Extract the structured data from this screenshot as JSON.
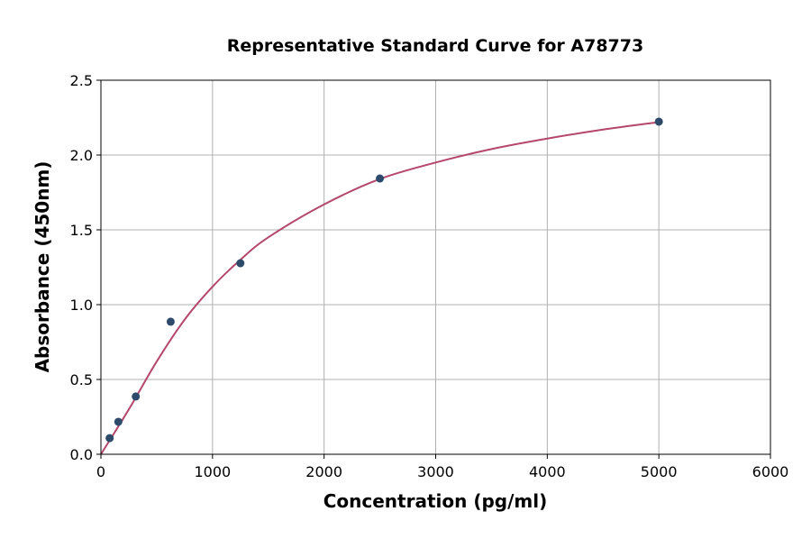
{
  "chart_data": {
    "type": "scatter",
    "title": "Representative Standard Curve for A78773",
    "xlabel": "Concentration (pg/ml)",
    "ylabel": "Absorbance (450nm)",
    "xlim": [
      0,
      6000
    ],
    "ylim": [
      0,
      2.5
    ],
    "xticks": [
      0,
      1000,
      2000,
      3000,
      4000,
      5000,
      6000
    ],
    "yticks": [
      0.0,
      0.5,
      1.0,
      1.5,
      2.0,
      2.5
    ],
    "xtick_labels": [
      "0",
      "1000",
      "2000",
      "3000",
      "4000",
      "5000",
      "6000"
    ],
    "ytick_labels": [
      "0.0",
      "0.5",
      "1.0",
      "1.5",
      "2.0",
      "2.5"
    ],
    "grid": true,
    "points": [
      {
        "x": 78.125,
        "y": 0.108
      },
      {
        "x": 156.25,
        "y": 0.217
      },
      {
        "x": 312.5,
        "y": 0.386
      },
      {
        "x": 625,
        "y": 0.886
      },
      {
        "x": 1250,
        "y": 1.277
      },
      {
        "x": 2500,
        "y": 1.843
      },
      {
        "x": 5000,
        "y": 2.223
      }
    ],
    "fit_curve": [
      [
        0,
        0
      ],
      [
        250,
        0.3
      ],
      [
        500,
        0.62
      ],
      [
        750,
        0.9
      ],
      [
        1000,
        1.12
      ],
      [
        1250,
        1.3
      ],
      [
        1500,
        1.45
      ],
      [
        2000,
        1.67
      ],
      [
        2500,
        1.84
      ],
      [
        3000,
        1.95
      ],
      [
        3500,
        2.04
      ],
      [
        4000,
        2.11
      ],
      [
        4500,
        2.17
      ],
      [
        5000,
        2.22
      ]
    ],
    "colors": {
      "points": "#2e4a6b",
      "curve": "#b5476b",
      "grid": "#b0b0b0"
    }
  }
}
